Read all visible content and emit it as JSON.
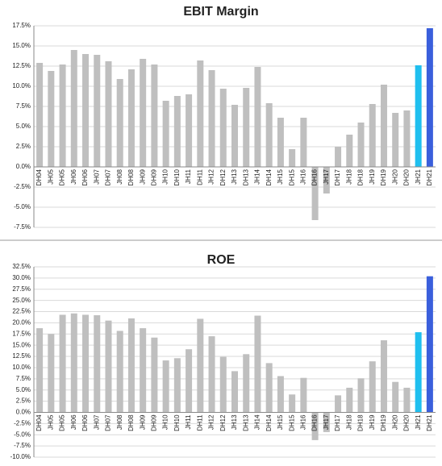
{
  "chart_data": [
    {
      "type": "bar",
      "title": "EBIT Margin",
      "categories": [
        "DH04",
        "JH05",
        "DH05",
        "JH06",
        "DH06",
        "JH07",
        "DH07",
        "JH08",
        "DH08",
        "JH09",
        "DH09",
        "JH10",
        "DH10",
        "JH11",
        "DH11",
        "JH12",
        "DH12",
        "JH13",
        "DH13",
        "JH14",
        "DH14",
        "JH15",
        "DH15",
        "JH16",
        "DH16",
        "JH17",
        "DH17",
        "JH18",
        "DH18",
        "JH19",
        "DH19",
        "JH20",
        "DH20",
        "JH21",
        "DH21"
      ],
      "values": [
        12.9,
        11.9,
        12.7,
        14.5,
        14.0,
        13.9,
        13.1,
        10.9,
        12.1,
        13.4,
        12.7,
        8.2,
        8.8,
        9.0,
        13.2,
        12.0,
        9.7,
        7.7,
        9.8,
        12.4,
        7.9,
        6.1,
        2.2,
        6.1,
        -6.6,
        -3.3,
        2.5,
        4.0,
        5.5,
        7.8,
        10.2,
        6.7,
        7.0,
        12.6,
        17.2
      ],
      "colors": [
        "#bfbfbf",
        "#bfbfbf",
        "#bfbfbf",
        "#bfbfbf",
        "#bfbfbf",
        "#bfbfbf",
        "#bfbfbf",
        "#bfbfbf",
        "#bfbfbf",
        "#bfbfbf",
        "#bfbfbf",
        "#bfbfbf",
        "#bfbfbf",
        "#bfbfbf",
        "#bfbfbf",
        "#bfbfbf",
        "#bfbfbf",
        "#bfbfbf",
        "#bfbfbf",
        "#bfbfbf",
        "#bfbfbf",
        "#bfbfbf",
        "#bfbfbf",
        "#bfbfbf",
        "#bfbfbf",
        "#bfbfbf",
        "#bfbfbf",
        "#bfbfbf",
        "#bfbfbf",
        "#bfbfbf",
        "#bfbfbf",
        "#bfbfbf",
        "#bfbfbf",
        "#1fbfef",
        "#3a5fdc"
      ],
      "ylim": [
        -7.5,
        17.5
      ],
      "yticks": [
        {
          "value": -7.5,
          "label": "-7.5%"
        },
        {
          "value": -5,
          "label": "-5.0%"
        },
        {
          "value": -2.5,
          "label": "-2.5%"
        },
        {
          "value": 0,
          "label": "0.0%"
        },
        {
          "value": 2.5,
          "label": "2.5%"
        },
        {
          "value": 5,
          "label": "5.0%"
        },
        {
          "value": 7.5,
          "label": "7.5%"
        },
        {
          "value": 10,
          "label": "10.0%"
        },
        {
          "value": 12.5,
          "label": "12.5%"
        },
        {
          "value": 15,
          "label": "15.0%"
        },
        {
          "value": 17.5,
          "label": "17.5%"
        }
      ],
      "grid": true
    },
    {
      "type": "bar",
      "title": "ROE",
      "categories": [
        "DH04",
        "JH05",
        "DH05",
        "JH06",
        "DH06",
        "JH07",
        "DH07",
        "JH08",
        "DH08",
        "JH09",
        "DH09",
        "JH10",
        "DH10",
        "JH11",
        "DH11",
        "JH12",
        "DH12",
        "JH13",
        "DH13",
        "JH14",
        "DH14",
        "JH15",
        "DH15",
        "JH16",
        "DH16",
        "JH17",
        "DH17",
        "JH18",
        "DH18",
        "JH19",
        "DH19",
        "JH20",
        "DH20",
        "JH21",
        "DH21"
      ],
      "values": [
        18.8,
        17.5,
        21.8,
        22.1,
        21.8,
        21.7,
        20.5,
        18.2,
        21.0,
        18.8,
        16.7,
        11.6,
        12.1,
        14.1,
        20.9,
        17.0,
        12.4,
        9.2,
        13.0,
        21.6,
        11.0,
        8.1,
        4.0,
        7.7,
        -6.2,
        -4.4,
        3.8,
        5.5,
        7.6,
        11.4,
        16.1,
        6.8,
        5.5,
        17.9,
        30.4
      ],
      "colors": [
        "#bfbfbf",
        "#bfbfbf",
        "#bfbfbf",
        "#bfbfbf",
        "#bfbfbf",
        "#bfbfbf",
        "#bfbfbf",
        "#bfbfbf",
        "#bfbfbf",
        "#bfbfbf",
        "#bfbfbf",
        "#bfbfbf",
        "#bfbfbf",
        "#bfbfbf",
        "#bfbfbf",
        "#bfbfbf",
        "#bfbfbf",
        "#bfbfbf",
        "#bfbfbf",
        "#bfbfbf",
        "#bfbfbf",
        "#bfbfbf",
        "#bfbfbf",
        "#bfbfbf",
        "#bfbfbf",
        "#bfbfbf",
        "#bfbfbf",
        "#bfbfbf",
        "#bfbfbf",
        "#bfbfbf",
        "#bfbfbf",
        "#bfbfbf",
        "#bfbfbf",
        "#1fbfef",
        "#3a5fdc"
      ],
      "ylim": [
        -10,
        32.5
      ],
      "yticks": [
        {
          "value": -10,
          "label": "-10.0%"
        },
        {
          "value": -7.5,
          "label": "-7.5%"
        },
        {
          "value": -5,
          "label": "-5.0%"
        },
        {
          "value": -2.5,
          "label": "-2.5%"
        },
        {
          "value": 0,
          "label": "0.0%"
        },
        {
          "value": 2.5,
          "label": "2.5%"
        },
        {
          "value": 5,
          "label": "5.0%"
        },
        {
          "value": 7.5,
          "label": "7.5%"
        },
        {
          "value": 10,
          "label": "10.0%"
        },
        {
          "value": 12.5,
          "label": "12.5%"
        },
        {
          "value": 15,
          "label": "15.0%"
        },
        {
          "value": 17.5,
          "label": "17.5%"
        },
        {
          "value": 20,
          "label": "20.0%"
        },
        {
          "value": 22.5,
          "label": "22.5%"
        },
        {
          "value": 25,
          "label": "25.0%"
        },
        {
          "value": 27.5,
          "label": "27.5%"
        },
        {
          "value": 30,
          "label": "30.0%"
        },
        {
          "value": 32.5,
          "label": "32.5%"
        }
      ],
      "grid": true
    }
  ]
}
